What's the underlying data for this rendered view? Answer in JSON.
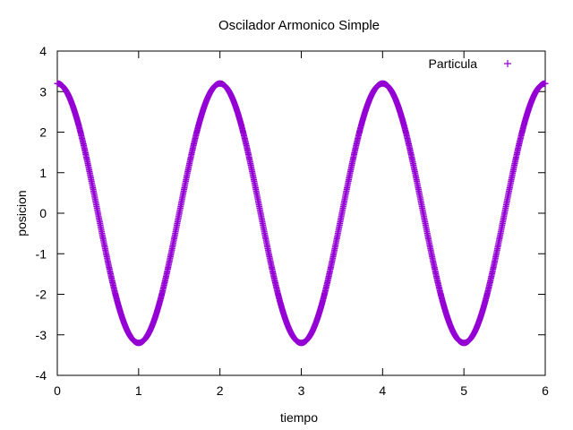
{
  "chart_data": {
    "type": "scatter",
    "title": "Oscilador Armonico Simple",
    "xlabel": "tiempo",
    "ylabel": "posicion",
    "xlim": [
      0,
      6
    ],
    "ylim": [
      -4,
      4
    ],
    "x_ticks": [
      "0",
      "1",
      "2",
      "3",
      "4",
      "5",
      "6"
    ],
    "y_ticks": [
      "-4",
      "-3",
      "-2",
      "-1",
      "0",
      "1",
      "2",
      "3",
      "4"
    ],
    "grid": false,
    "legend_position": "top-right",
    "series": [
      {
        "name": "Particula",
        "color": "#9400d3",
        "marker": "plus",
        "amplitude": 3.2,
        "period": 2,
        "x": [
          0,
          0.1,
          0.2,
          0.3,
          0.4,
          0.5,
          0.6,
          0.7,
          0.8,
          0.9,
          1.0,
          1.1,
          1.2,
          1.3,
          1.4,
          1.5,
          1.6,
          1.7,
          1.8,
          1.9,
          2.0,
          2.1,
          2.2,
          2.3,
          2.4,
          2.5,
          2.6,
          2.7,
          2.8,
          2.9,
          3.0,
          3.1,
          3.2,
          3.3,
          3.4,
          3.5,
          3.6,
          3.7,
          3.8,
          3.9,
          4.0,
          4.1,
          4.2,
          4.3,
          4.4,
          4.5,
          4.6,
          4.7,
          4.8,
          4.9,
          5.0,
          5.1,
          5.2,
          5.3,
          5.4,
          5.5,
          5.6,
          5.7,
          5.8,
          5.9,
          6.0
        ],
        "y": [
          3.2,
          3.04,
          2.59,
          1.88,
          0.99,
          0.0,
          -0.99,
          -1.88,
          -2.59,
          -3.04,
          -3.2,
          -3.04,
          -2.59,
          -1.88,
          -0.99,
          0.0,
          0.99,
          1.88,
          2.59,
          3.04,
          3.2,
          3.04,
          2.59,
          1.88,
          0.99,
          0.0,
          -0.99,
          -1.88,
          -2.59,
          -3.04,
          -3.2,
          -3.04,
          -2.59,
          -1.88,
          -0.99,
          0.0,
          0.99,
          1.88,
          2.59,
          3.04,
          3.2,
          3.04,
          2.59,
          1.88,
          0.99,
          0.0,
          -0.99,
          -1.88,
          -2.59,
          -3.04,
          -3.2,
          -3.04,
          -2.59,
          -1.88,
          -0.99,
          0.0,
          0.99,
          1.88,
          2.59,
          3.04,
          3.2
        ]
      }
    ]
  }
}
